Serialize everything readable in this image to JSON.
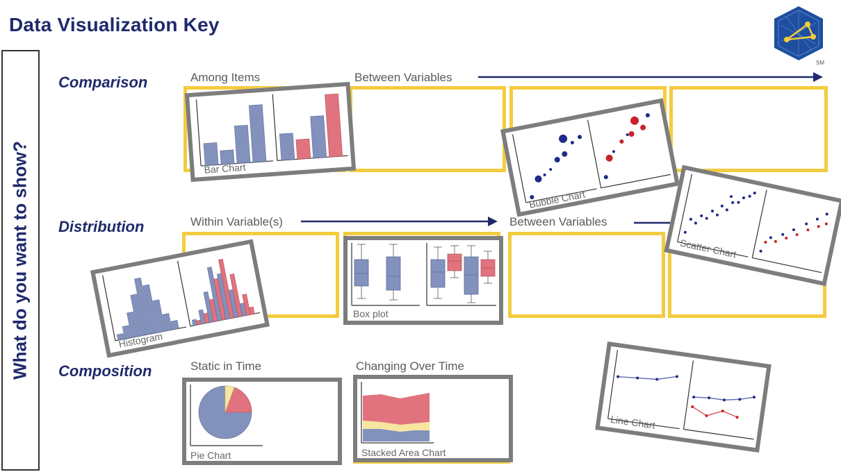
{
  "title": "Data Visualization Key",
  "vertical_label": "What do you want to show?",
  "logo": {
    "icon": "network-hexagon-logo",
    "mark": "SM",
    "color": "#1e4ea0"
  },
  "colors": {
    "navy": "#1f2a6b",
    "yellow": "#f3cc3e",
    "card_border": "#7d7d7d",
    "blue_mark": "#8391bd",
    "red_mark": "#e0737d",
    "pie_yellow": "#f7e6a0"
  },
  "rows": {
    "comparison": {
      "label": "Comparison",
      "among": "Among Items",
      "between": "Between Variables"
    },
    "distribution": {
      "label": "Distribution",
      "within": "Within Variable(s)",
      "between": "Between Variables"
    },
    "composition": {
      "label": "Composition",
      "static": "Static in Time",
      "changing": "Changing Over Time"
    }
  },
  "cards": {
    "bar": {
      "caption": "Bar Chart"
    },
    "bubble": {
      "caption": "Bubble Chart"
    },
    "scatter": {
      "caption": "Scatter Chart"
    },
    "histogram": {
      "caption": "Histogram"
    },
    "box": {
      "caption": "Box plot"
    },
    "pie": {
      "caption": "Pie Chart"
    },
    "area": {
      "caption": "Stacked Area Chart"
    },
    "line": {
      "caption": "Line Chart"
    }
  }
}
